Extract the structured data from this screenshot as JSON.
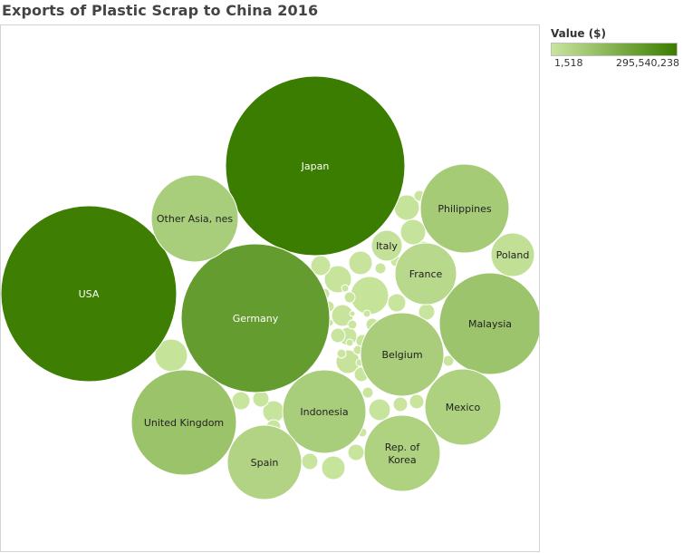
{
  "title": "Exports of Plastic Scrap to China 2016",
  "legend": {
    "title": "Value ($)",
    "min_label": "1,518",
    "max_label": "295,540,238",
    "color_low": "#c9e59e",
    "color_high": "#3b7d00"
  },
  "chart_data": {
    "type": "packed-bubble",
    "title": "Exports of Plastic Scrap to China 2016",
    "value_label": "Value ($)",
    "color_range": [
      1518,
      295540238
    ],
    "series": [
      {
        "name": "Japan",
        "value": 295540238,
        "label": "Japan"
      },
      {
        "name": "USA",
        "value": 290000000,
        "label": "USA"
      },
      {
        "name": "Germany",
        "value": 208000000,
        "label": "Germany"
      },
      {
        "name": "Malaysia",
        "value": 94000000,
        "label": "Malaysia"
      },
      {
        "name": "Philippines",
        "value": 74000000,
        "label": "Philippines"
      },
      {
        "name": "Belgium",
        "value": 67000000,
        "label": "Belgium"
      },
      {
        "name": "Indonesia",
        "value": 66000000,
        "label": "Indonesia"
      },
      {
        "name": "United Kingdom",
        "value": 98000000,
        "label": "United Kingdom"
      },
      {
        "name": "Other Asia, nes",
        "value": 66000000,
        "label": "Other Asia, nes"
      },
      {
        "name": "Rep. of Korea",
        "value": 54000000,
        "label": "Rep. of\nKorea"
      },
      {
        "name": "Mexico",
        "value": 56000000,
        "label": "Mexico"
      },
      {
        "name": "Spain",
        "value": 50000000,
        "label": "Spain"
      },
      {
        "name": "France",
        "value": 35000000,
        "label": "France"
      },
      {
        "name": "Poland",
        "value": 17000000,
        "label": "Poland"
      },
      {
        "name": "Italy",
        "value": 12000000,
        "label": "Italy"
      }
    ],
    "unlabeled_values": [
      7000000,
      7000000,
      6000000,
      5500000,
      5000000,
      4500000,
      4000000,
      3600000,
      3400000,
      3200000,
      3000000,
      2800000,
      2600000,
      2400000,
      2300000,
      2200000,
      2100000,
      2000000,
      1900000,
      1800000,
      1700000,
      1600000,
      1500000,
      1400000,
      1300000,
      1200000,
      1100000,
      1000000,
      950000,
      900000,
      850000,
      800000,
      750000,
      700000,
      650000,
      600000,
      550000,
      500000,
      450000,
      400000,
      350000,
      300000,
      250000,
      200000,
      150000,
      100000,
      80000,
      60000,
      40000,
      20000,
      10000,
      5000,
      1518
    ]
  }
}
